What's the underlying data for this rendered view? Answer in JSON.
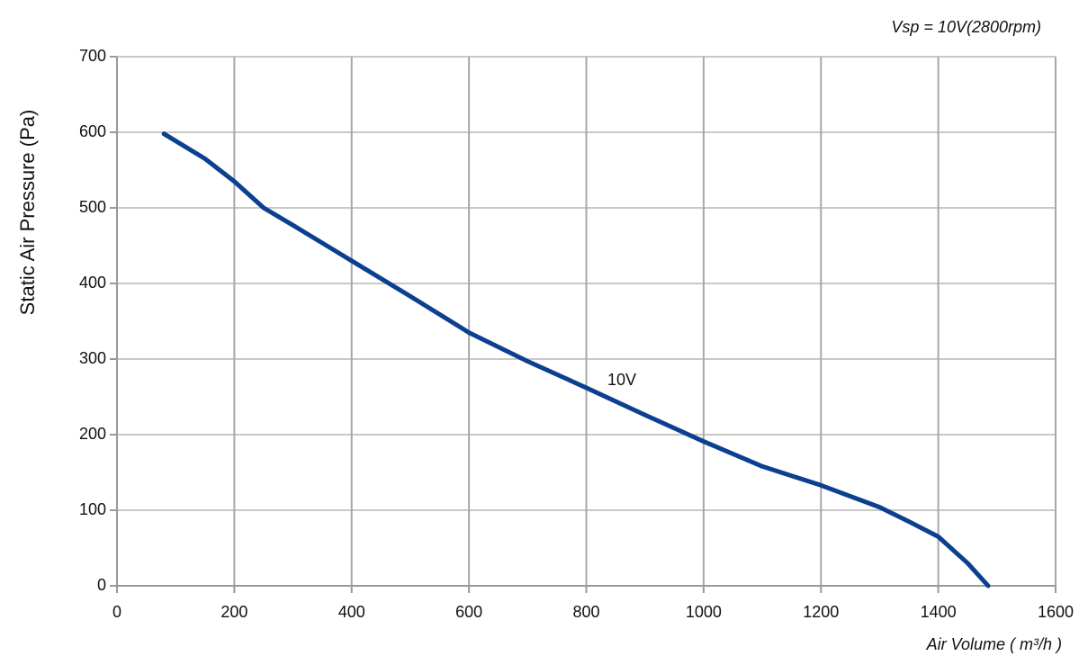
{
  "chart_data": {
    "type": "line",
    "title": "Vsp = 10V(2800rpm)",
    "x_label": "Air Volume ( m³/h )",
    "y_label": "Static Air Pressure  (Pa)",
    "annotation": "10V",
    "x": [
      80,
      150,
      200,
      250,
      300,
      400,
      500,
      600,
      700,
      800,
      900,
      1000,
      1100,
      1200,
      1300,
      1350,
      1400,
      1450,
      1485
    ],
    "series": [
      {
        "name": "10V",
        "color": "#0b3f8f",
        "values": [
          598,
          565,
          535,
          500,
          477,
          430,
          383,
          335,
          297,
          262,
          226,
          191,
          158,
          133,
          104,
          85,
          65,
          30,
          0
        ]
      }
    ],
    "xlim": [
      0,
      1600
    ],
    "xticks": [
      0,
      200,
      400,
      600,
      800,
      1000,
      1200,
      1400,
      1600
    ],
    "ylim": [
      0,
      700
    ],
    "yticks": [
      0,
      100,
      200,
      300,
      400,
      500,
      600,
      700
    ],
    "grid": true
  }
}
